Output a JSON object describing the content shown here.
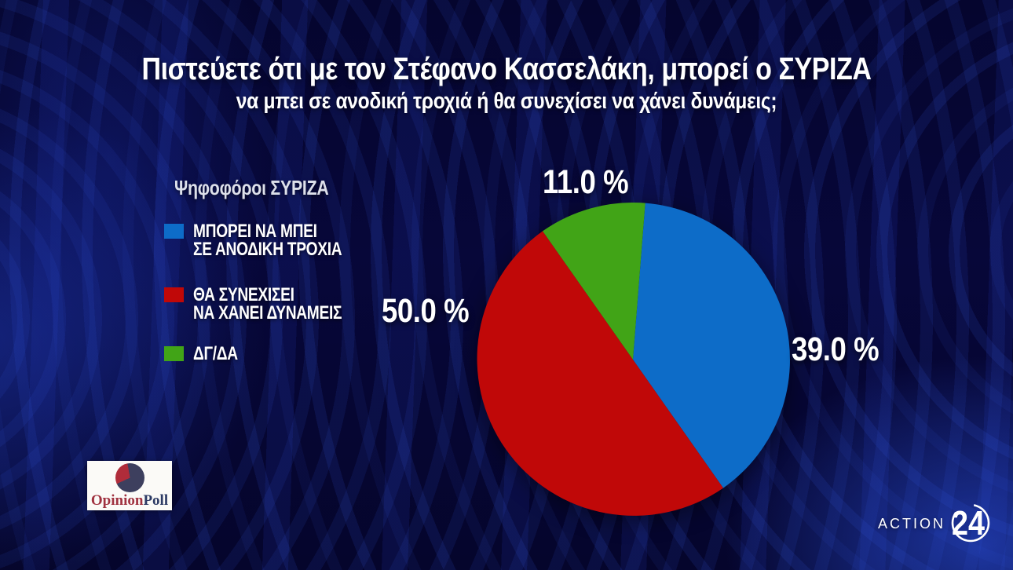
{
  "title": {
    "line1": "Πιστεύετε ότι με τον Στέφανο Κασσελάκη, μπορεί ο ΣΥΡΙΖΑ",
    "line2": "να μπει σε ανοδική τροχιά ή θα συνεχίσει να χάνει δυνάμεις;"
  },
  "chart_data": {
    "type": "pie",
    "title": "Ψηφοφόροι ΣΥΡΙΖΑ",
    "direction": "clockwise",
    "start_angle_clockwise_from_north_deg": 4.5,
    "legend_position": "left",
    "slices": [
      {
        "label": "ΜΠΟΡΕΙ ΝΑ ΜΠΕΙ ΣΕ ΑΝΟΔΙΚΗ ΤΡΟΧΙΑ",
        "value": 39.0,
        "value_label": "39.0 %",
        "color": "#0d6cc8"
      },
      {
        "label": "ΘΑ ΣΥΝΕΧΙΣΕΙ ΝΑ ΧΑΝΕΙ ΔΥΝΑΜΕΙΣ",
        "value": 50.0,
        "value_label": "50.0 %",
        "color": "#c00808"
      },
      {
        "label": "ΔΓ/ΔΑ",
        "value": 11.0,
        "value_label": "11.0 %",
        "color": "#41a417"
      }
    ]
  },
  "legend": {
    "header": "Ψηφοφόροι ΣΥΡΙΖΑ",
    "items": [
      {
        "line1": "ΜΠΟΡΕΙ ΝΑ ΜΠΕΙ",
        "line2": "ΣΕ ΑΝΟΔΙΚΗ ΤΡΟΧΙΑ"
      },
      {
        "line1": "ΘΑ ΣΥΝΕΧΙΣΕΙ",
        "line2": "ΝΑ ΧΑΝΕΙ ΔΥΝΑΜΕΙΣ"
      },
      {
        "line1": "ΔΓ/ΔΑ",
        "line2": ""
      }
    ]
  },
  "branding": {
    "pollster": {
      "name_part1": "Opinion",
      "name_part2": "Poll",
      "part1_color": "#a03240",
      "part2_color": "#2c3a64"
    },
    "channel": {
      "name": "ACTION",
      "number": "24"
    }
  }
}
